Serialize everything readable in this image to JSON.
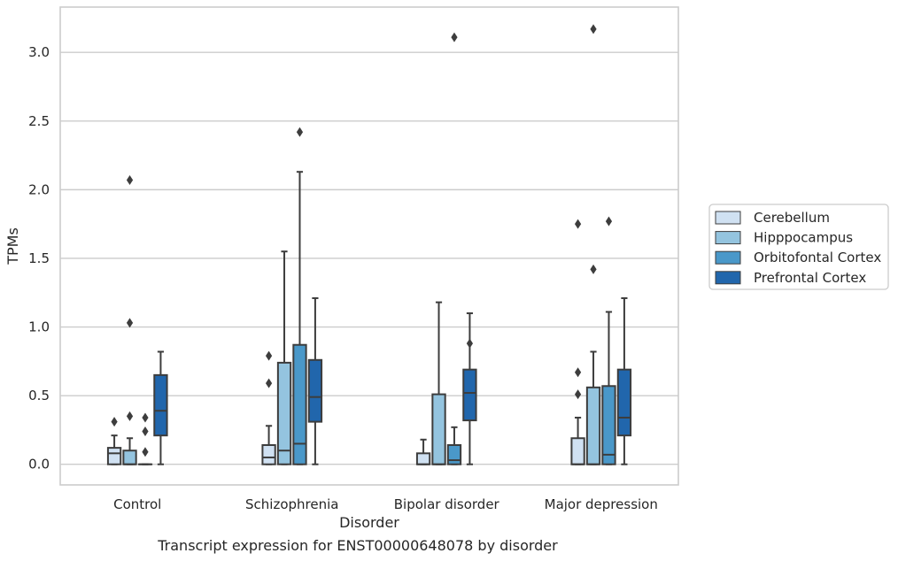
{
  "chart_data": {
    "type": "box",
    "xlabel": "Disorder",
    "ylabel": "TPMs",
    "caption": "Transcript expression for ENST00000648078 by disorder",
    "ylim": [
      -0.15,
      3.33
    ],
    "yticks": [
      "0.0",
      "0.5",
      "1.0",
      "1.5",
      "2.0",
      "2.5",
      "3.0"
    ],
    "grid": "horizontal",
    "legend_position": "right",
    "categories": [
      "Control",
      "Schizophrenia",
      "Bipolar disorder",
      "Major depression"
    ],
    "series": [
      {
        "name": "Cerebellum",
        "color": "#d0e1f2",
        "boxes": [
          {
            "whislo": 0.0,
            "q1": 0.0,
            "median": 0.08,
            "q3": 0.12,
            "whishi": 0.21,
            "fliers": [
              0.31
            ]
          },
          {
            "whislo": 0.0,
            "q1": 0.0,
            "median": 0.05,
            "q3": 0.14,
            "whishi": 0.28,
            "fliers": [
              0.59,
              0.79
            ]
          },
          {
            "whislo": 0.0,
            "q1": 0.0,
            "median": 0.0,
            "q3": 0.08,
            "whishi": 0.18,
            "fliers": []
          },
          {
            "whislo": 0.0,
            "q1": 0.0,
            "median": 0.0,
            "q3": 0.19,
            "whishi": 0.34,
            "fliers": [
              0.51,
              0.67,
              1.75
            ]
          }
        ]
      },
      {
        "name": "Hipppocampus",
        "color": "#94c4df",
        "boxes": [
          {
            "whislo": 0.0,
            "q1": 0.0,
            "median": 0.0,
            "q3": 0.1,
            "whishi": 0.19,
            "fliers": [
              0.35,
              1.03,
              2.07
            ]
          },
          {
            "whislo": 0.0,
            "q1": 0.0,
            "median": 0.1,
            "q3": 0.74,
            "whishi": 1.55,
            "fliers": []
          },
          {
            "whislo": 0.0,
            "q1": 0.0,
            "median": 0.0,
            "q3": 0.51,
            "whishi": 1.18,
            "fliers": []
          },
          {
            "whislo": 0.0,
            "q1": 0.0,
            "median": 0.0,
            "q3": 0.56,
            "whishi": 0.82,
            "fliers": [
              1.42,
              3.17
            ]
          }
        ]
      },
      {
        "name": "Orbitofontal Cortex",
        "color": "#4a98c9",
        "boxes": [
          {
            "whislo": 0.0,
            "q1": 0.0,
            "median": 0.0,
            "q3": 0.0,
            "whishi": 0.0,
            "fliers": [
              0.09,
              0.24,
              0.34
            ]
          },
          {
            "whislo": 0.0,
            "q1": 0.0,
            "median": 0.15,
            "q3": 0.87,
            "whishi": 2.13,
            "fliers": [
              2.42
            ]
          },
          {
            "whislo": 0.0,
            "q1": 0.0,
            "median": 0.03,
            "q3": 0.14,
            "whishi": 0.27,
            "fliers": [
              3.11
            ]
          },
          {
            "whislo": 0.0,
            "q1": 0.0,
            "median": 0.07,
            "q3": 0.57,
            "whishi": 1.11,
            "fliers": [
              1.77
            ]
          }
        ]
      },
      {
        "name": "Prefrontal Cortex",
        "color": "#2166ac",
        "boxes": [
          {
            "whislo": 0.0,
            "q1": 0.21,
            "median": 0.39,
            "q3": 0.65,
            "whishi": 0.82,
            "fliers": []
          },
          {
            "whislo": 0.0,
            "q1": 0.31,
            "median": 0.49,
            "q3": 0.76,
            "whishi": 1.21,
            "fliers": []
          },
          {
            "whislo": 0.0,
            "q1": 0.32,
            "median": 0.52,
            "q3": 0.69,
            "whishi": 1.1,
            "fliers": [
              0.88
            ]
          },
          {
            "whislo": 0.0,
            "q1": 0.21,
            "median": 0.34,
            "q3": 0.69,
            "whishi": 1.21,
            "fliers": []
          }
        ]
      }
    ],
    "colors": {
      "grid": "#cccccc",
      "frame": "#cccccc",
      "box_edge": "#3d3d3d",
      "text": "#262626",
      "legend_border": "#cccccc"
    }
  }
}
